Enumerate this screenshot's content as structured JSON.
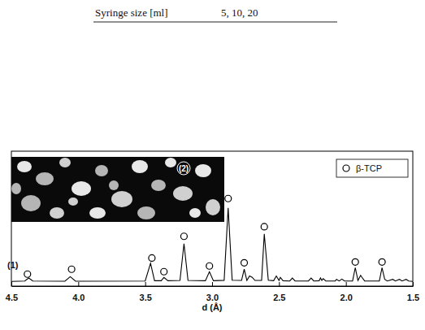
{
  "table_fragment": {
    "row": [
      "Syringe size [ml]",
      "5, 10, 20"
    ]
  },
  "chart_data": {
    "type": "line",
    "x_label": "d (Å)",
    "xlim": [
      4.5,
      1.5
    ],
    "xticks": [
      4.5,
      {
        "value": 4,
        "label": "4.0"
      },
      3.5,
      {
        "value": 3,
        "label": "3.0"
      },
      2.5,
      {
        "value": 2,
        "label": "2.0"
      },
      1.5
    ],
    "ylim": [
      0,
      100
    ],
    "tick_labels": "x",
    "legend": "upper right",
    "annotations": [
      "(1)",
      "(2)"
    ],
    "series": [
      {
        "type": "line",
        "color": "#000000",
        "line_style": "solid",
        "x": [
          4.5,
          4.4,
          4.37,
          4.34,
          4.1,
          4.06,
          4.02,
          3.5,
          3.46,
          3.43,
          3.38,
          3.36,
          3.33,
          3.24,
          3.21,
          3.18,
          3.05,
          3.02,
          2.99,
          2.91,
          2.88,
          2.85,
          2.78,
          2.76,
          2.74,
          2.72,
          2.7,
          2.68,
          2.63,
          2.61,
          2.58,
          2.54,
          2.52,
          2.5,
          2.49,
          2.47,
          2.42,
          2.4,
          2.38,
          2.28,
          2.26,
          2.24,
          2.2,
          2.19,
          2.18,
          2.17,
          2.15,
          2.08,
          2.07,
          2.05,
          2.03,
          2.01,
          1.95,
          1.93,
          1.91,
          1.89,
          1.88,
          1.86,
          1.75,
          1.73,
          1.71,
          1.69,
          1.65,
          1.63,
          1.6,
          1.58,
          1.55,
          1.53,
          1.5
        ],
        "values": [
          3.5,
          3.8,
          6.0,
          3.8,
          3.6,
          7.0,
          3.6,
          3.8,
          17.0,
          4.0,
          4.0,
          6.5,
          4.0,
          4.2,
          31.5,
          4.2,
          4.0,
          10.7,
          4.0,
          4.3,
          58.0,
          4.4,
          4.2,
          12.5,
          4.2,
          7.5,
          6.5,
          4.2,
          4.3,
          38.7,
          4.4,
          4.0,
          7.5,
          4.2,
          6.5,
          4.0,
          3.8,
          6.0,
          3.8,
          3.8,
          6.0,
          3.8,
          4.0,
          6.0,
          4.2,
          5.5,
          3.8,
          3.8,
          5.0,
          3.8,
          5.2,
          3.8,
          3.8,
          13.7,
          4.2,
          8.0,
          6.5,
          3.8,
          3.8,
          13.7,
          5.0,
          3.8,
          5.0,
          3.8,
          5.0,
          3.8,
          5.0,
          3.8,
          3.5
        ]
      },
      {
        "name": "β-TCP",
        "type": "scatter",
        "marker": "circle",
        "color": "#000000",
        "x": [
          4.38,
          4.05,
          3.45,
          3.36,
          3.21,
          3.02,
          2.88,
          2.76,
          2.61,
          1.93,
          1.73
        ],
        "values": [
          8.9,
          12.5,
          20.8,
          10.7,
          36.9,
          14.9,
          64.9,
          17.3,
          44.0,
          17.9,
          17.9
        ]
      }
    ]
  }
}
